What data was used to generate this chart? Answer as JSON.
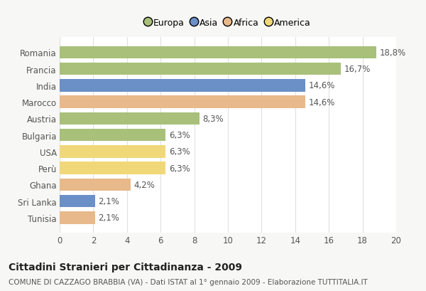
{
  "categories": [
    "Romania",
    "Francia",
    "India",
    "Marocco",
    "Austria",
    "Bulgaria",
    "USA",
    "Perù",
    "Ghana",
    "Sri Lanka",
    "Tunisia"
  ],
  "values": [
    18.8,
    16.7,
    14.6,
    14.6,
    8.3,
    6.3,
    6.3,
    6.3,
    4.2,
    2.1,
    2.1
  ],
  "labels": [
    "18,8%",
    "16,7%",
    "14,6%",
    "14,6%",
    "8,3%",
    "6,3%",
    "6,3%",
    "6,3%",
    "4,2%",
    "2,1%",
    "2,1%"
  ],
  "colors": [
    "#a8c07a",
    "#a8c07a",
    "#6b8fc7",
    "#e8b98a",
    "#a8c07a",
    "#a8c07a",
    "#f0d878",
    "#f0d878",
    "#e8b98a",
    "#6b8fc7",
    "#e8b98a"
  ],
  "legend_labels": [
    "Europa",
    "Asia",
    "Africa",
    "America"
  ],
  "legend_colors": [
    "#a8c07a",
    "#6b8fc7",
    "#e8b98a",
    "#f0d878"
  ],
  "title": "Cittadini Stranieri per Cittadinanza - 2009",
  "subtitle": "COMUNE DI CAZZAGO BRABBIA (VA) - Dati ISTAT al 1° gennaio 2009 - Elaborazione TUTTITALIA.IT",
  "xlim": [
    0,
    20
  ],
  "xticks": [
    0,
    2,
    4,
    6,
    8,
    10,
    12,
    14,
    16,
    18,
    20
  ],
  "plot_bg_color": "#ffffff",
  "fig_bg_color": "#f7f7f5",
  "grid_color": "#e0e0e0",
  "bar_height": 0.75,
  "label_fontsize": 8.5,
  "tick_fontsize": 8.5,
  "title_fontsize": 10,
  "subtitle_fontsize": 7.5
}
